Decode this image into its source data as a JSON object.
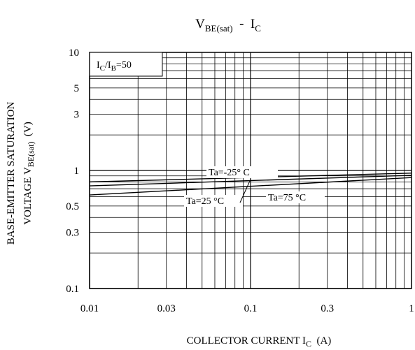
{
  "chart_data": {
    "type": "line",
    "title": {
      "base": "V",
      "sub": "BE(sat)",
      "suffix": "  -  I",
      "suffix_sub": "C"
    },
    "xlabel": {
      "base": "COLLECTOR CURRENT I",
      "sub": "C",
      "suffix": "  (A)"
    },
    "ylabel": {
      "line1": "BASE-EMITTER SATURATION",
      "line2_base": "VOLTAGE V",
      "line2_sub": "BE(sat)",
      "line2_suffix": "  (V)"
    },
    "x_scale": "log",
    "y_scale": "log",
    "xlim": [
      0.01,
      1
    ],
    "ylim": [
      0.1,
      10
    ],
    "x_ticks": [
      {
        "value": 0.01,
        "label": "0.01"
      },
      {
        "value": 0.03,
        "label": "0.03"
      },
      {
        "value": 0.1,
        "label": "0.1"
      },
      {
        "value": 0.3,
        "label": "0.3"
      },
      {
        "value": 1,
        "label": "1"
      }
    ],
    "y_ticks": [
      {
        "value": 0.1,
        "label": "0.1"
      },
      {
        "value": 0.3,
        "label": "0.3"
      },
      {
        "value": 0.5,
        "label": "0.5"
      },
      {
        "value": 1,
        "label": "1"
      },
      {
        "value": 3,
        "label": "3"
      },
      {
        "value": 5,
        "label": "5"
      },
      {
        "value": 10,
        "label": "10"
      }
    ],
    "grid": true,
    "condition": {
      "a": "I",
      "a_sub": "C",
      "mid": "/I",
      "b_sub": "B",
      "rest": "=50"
    },
    "series": [
      {
        "name": "Ta=-25° C",
        "x": [
          0.01,
          1
        ],
        "y": [
          0.8,
          0.95
        ]
      },
      {
        "name": "Ta=25 °C",
        "x": [
          0.01,
          1
        ],
        "y": [
          0.74,
          0.91
        ]
      },
      {
        "name": "Ta=75 °C",
        "x": [
          0.01,
          1
        ],
        "y": [
          0.62,
          0.87
        ]
      }
    ]
  }
}
